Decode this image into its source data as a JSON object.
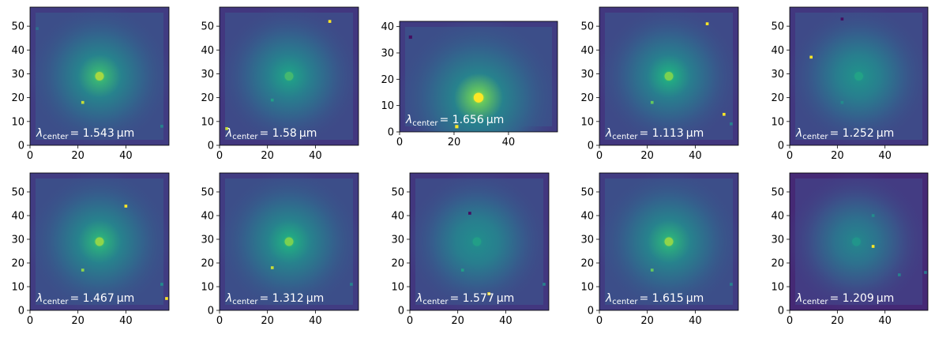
{
  "figure": {
    "layout": "2x5 grid of image panels",
    "colormap": "viridis",
    "tick_color": "#000000",
    "label_color": "#ffffff"
  },
  "chart_data": [
    {
      "type": "heatmap",
      "label_symbol": "λ",
      "label_sub": "center",
      "label_value": "= 1.543",
      "label_unit": "μm",
      "xlim": [
        0,
        58
      ],
      "ylim": [
        0,
        58
      ],
      "xticks": [
        "0",
        "20",
        "40"
      ],
      "yticks": [
        "0",
        "10",
        "20",
        "30",
        "40",
        "50"
      ],
      "core": [
        29,
        29
      ],
      "core_level": 0.92,
      "bg_level": 0.3,
      "sources": [
        {
          "x": 22,
          "y": 18,
          "level": 0.95
        },
        {
          "x": 55,
          "y": 8,
          "level": 0.55
        },
        {
          "x": 3,
          "y": 49,
          "level": 0.45
        }
      ]
    },
    {
      "type": "heatmap",
      "label_symbol": "λ",
      "label_sub": "center",
      "label_value": "= 1.58",
      "label_unit": "μm",
      "xlim": [
        0,
        58
      ],
      "ylim": [
        0,
        58
      ],
      "xticks": [
        "0",
        "20",
        "40"
      ],
      "yticks": [
        "0",
        "10",
        "20",
        "30",
        "40",
        "50"
      ],
      "core": [
        29,
        29
      ],
      "core_level": 0.8,
      "bg_level": 0.28,
      "sources": [
        {
          "x": 46,
          "y": 52,
          "level": 1.0
        },
        {
          "x": 22,
          "y": 19,
          "level": 0.7
        },
        {
          "x": 3,
          "y": 7,
          "level": 0.95
        }
      ]
    },
    {
      "type": "heatmap",
      "label_symbol": "λ",
      "label_sub": "center",
      "label_value": "= 1.656",
      "label_unit": "μm",
      "xlim": [
        0,
        58
      ],
      "ylim": [
        0,
        42
      ],
      "xticks": [
        "0",
        "20",
        "40"
      ],
      "yticks": [
        "0",
        "10",
        "20",
        "30",
        "40"
      ],
      "core": [
        29,
        13
      ],
      "core_level": 1.0,
      "bg_level": 0.3,
      "sources": [
        {
          "x": 21,
          "y": 2,
          "level": 1.0
        },
        {
          "x": 4,
          "y": 36,
          "level": 0.05
        }
      ]
    },
    {
      "type": "heatmap",
      "label_symbol": "λ",
      "label_sub": "center",
      "label_value": "= 1.113",
      "label_unit": "μm",
      "xlim": [
        0,
        58
      ],
      "ylim": [
        0,
        58
      ],
      "xticks": [
        "0",
        "20",
        "40"
      ],
      "yticks": [
        "0",
        "10",
        "20",
        "30",
        "40",
        "50"
      ],
      "core": [
        29,
        29
      ],
      "core_level": 0.88,
      "bg_level": 0.28,
      "sources": [
        {
          "x": 45,
          "y": 51,
          "level": 1.0
        },
        {
          "x": 52,
          "y": 13,
          "level": 1.0
        },
        {
          "x": 22,
          "y": 18,
          "level": 0.85
        },
        {
          "x": 55,
          "y": 9,
          "level": 0.55
        }
      ]
    },
    {
      "type": "heatmap",
      "label_symbol": "λ",
      "label_sub": "center",
      "label_value": "= 1.252",
      "label_unit": "μm",
      "xlim": [
        0,
        58
      ],
      "ylim": [
        0,
        58
      ],
      "xticks": [
        "0",
        "20",
        "40"
      ],
      "yticks": [
        "0",
        "10",
        "20",
        "30",
        "40",
        "50"
      ],
      "core": [
        29,
        29
      ],
      "core_level": 0.72,
      "bg_level": 0.28,
      "sources": [
        {
          "x": 9,
          "y": 37,
          "level": 1.0
        },
        {
          "x": 22,
          "y": 18,
          "level": 0.6
        },
        {
          "x": 22,
          "y": 53,
          "level": 0.05
        }
      ]
    },
    {
      "type": "heatmap",
      "label_symbol": "λ",
      "label_sub": "center",
      "label_value": "= 1.467",
      "label_unit": "μm",
      "xlim": [
        0,
        58
      ],
      "ylim": [
        0,
        58
      ],
      "xticks": [
        "0",
        "20",
        "40"
      ],
      "yticks": [
        "0",
        "10",
        "20",
        "30",
        "40",
        "50"
      ],
      "core": [
        29,
        29
      ],
      "core_level": 0.9,
      "bg_level": 0.3,
      "sources": [
        {
          "x": 40,
          "y": 44,
          "level": 1.0
        },
        {
          "x": 22,
          "y": 17,
          "level": 0.9
        },
        {
          "x": 57,
          "y": 5,
          "level": 1.0
        },
        {
          "x": 55,
          "y": 11,
          "level": 0.6
        }
      ]
    },
    {
      "type": "heatmap",
      "label_symbol": "λ",
      "label_sub": "center",
      "label_value": "= 1.312",
      "label_unit": "μm",
      "xlim": [
        0,
        58
      ],
      "ylim": [
        0,
        58
      ],
      "xticks": [
        "0",
        "20",
        "40"
      ],
      "yticks": [
        "0",
        "10",
        "20",
        "30",
        "40",
        "50"
      ],
      "core": [
        29,
        29
      ],
      "core_level": 0.88,
      "bg_level": 0.3,
      "sources": [
        {
          "x": 22,
          "y": 18,
          "level": 0.95
        },
        {
          "x": 55,
          "y": 11,
          "level": 0.55
        }
      ]
    },
    {
      "type": "heatmap",
      "label_symbol": "λ",
      "label_sub": "center",
      "label_value": "= 1.577",
      "label_unit": "μm",
      "xlim": [
        0,
        58
      ],
      "ylim": [
        0,
        58
      ],
      "xticks": [
        "0",
        "20",
        "40"
      ],
      "yticks": [
        "0",
        "10",
        "20",
        "30",
        "40",
        "50"
      ],
      "core": [
        28,
        29
      ],
      "core_level": 0.7,
      "bg_level": 0.28,
      "sources": [
        {
          "x": 33,
          "y": 7,
          "level": 1.0
        },
        {
          "x": 22,
          "y": 17,
          "level": 0.7
        },
        {
          "x": 56,
          "y": 11,
          "level": 0.55
        },
        {
          "x": 25,
          "y": 41,
          "level": 0.05
        }
      ]
    },
    {
      "type": "heatmap",
      "label_symbol": "λ",
      "label_sub": "center",
      "label_value": "= 1.615",
      "label_unit": "μm",
      "xlim": [
        0,
        58
      ],
      "ylim": [
        0,
        58
      ],
      "xticks": [
        "0",
        "20",
        "40"
      ],
      "yticks": [
        "0",
        "10",
        "20",
        "30",
        "40",
        "50"
      ],
      "core": [
        29,
        29
      ],
      "core_level": 0.9,
      "bg_level": 0.3,
      "sources": [
        {
          "x": 22,
          "y": 17,
          "level": 0.85
        },
        {
          "x": 55,
          "y": 11,
          "level": 0.55
        }
      ]
    },
    {
      "type": "heatmap",
      "label_symbol": "λ",
      "label_sub": "center",
      "label_value": "= 1.209",
      "label_unit": "μm",
      "xlim": [
        0,
        58
      ],
      "ylim": [
        0,
        58
      ],
      "xticks": [
        "0",
        "20",
        "40"
      ],
      "yticks": [
        "0",
        "10",
        "20",
        "30",
        "40",
        "50"
      ],
      "core": [
        28,
        29
      ],
      "core_level": 0.65,
      "bg_level": 0.22,
      "sources": [
        {
          "x": 35,
          "y": 27,
          "level": 1.0
        },
        {
          "x": 35,
          "y": 40,
          "level": 0.6
        },
        {
          "x": 46,
          "y": 15,
          "level": 0.55
        },
        {
          "x": 57,
          "y": 16,
          "level": 0.5
        }
      ]
    }
  ]
}
